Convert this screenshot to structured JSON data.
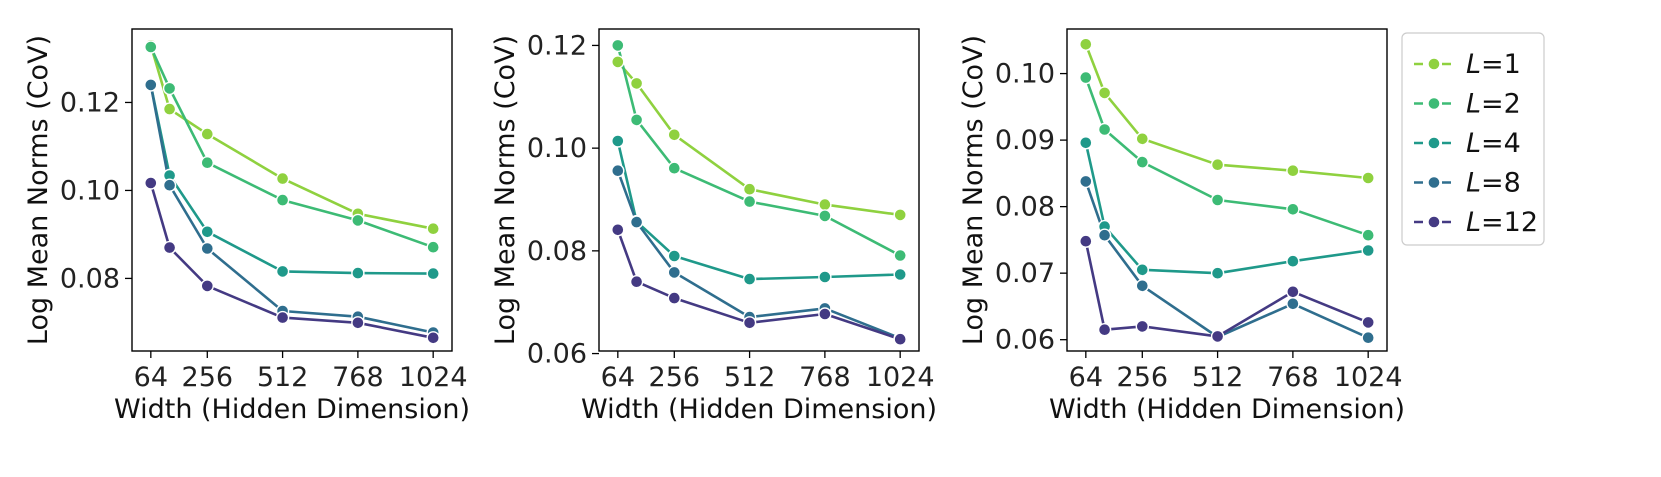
{
  "chart_data": [
    {
      "type": "line",
      "xlabel": "Width (Hidden Dimension)",
      "ylabel": "Log Mean Norms (CoV)",
      "xticks": [
        64,
        256,
        512,
        768,
        1024
      ],
      "yticks": [
        0.08,
        0.1,
        0.12
      ],
      "ytick_labels": [
        "0.08",
        "0.10",
        "0.12"
      ],
      "xlim": [
        0,
        1088
      ],
      "ylim": [
        0.0635,
        0.1367
      ],
      "x": [
        64,
        128,
        256,
        512,
        768,
        1024
      ],
      "series": [
        {
          "name": "L=1",
          "values": [
            0.133,
            0.1185,
            0.1128,
            0.1027,
            0.0947,
            0.0913
          ]
        },
        {
          "name": "L=2",
          "values": [
            0.1326,
            0.1232,
            0.1063,
            0.0978,
            0.0932,
            0.0871
          ]
        },
        {
          "name": "L=4",
          "values": [
            0.124,
            0.1034,
            0.0906,
            0.0816,
            0.0812,
            0.0811
          ]
        },
        {
          "name": "L=8",
          "values": [
            0.124,
            0.1012,
            0.0868,
            0.0726,
            0.0713,
            0.0677
          ]
        },
        {
          "name": "L=12",
          "values": [
            0.1017,
            0.087,
            0.0783,
            0.0711,
            0.0699,
            0.0665
          ]
        }
      ]
    },
    {
      "type": "line",
      "xlabel": "Width (Hidden Dimension)",
      "ylabel": "Log Mean Norms (CoV)",
      "xticks": [
        64,
        256,
        512,
        768,
        1024
      ],
      "yticks": [
        0.06,
        0.08,
        0.1,
        0.12
      ],
      "ytick_labels": [
        "0.06",
        "0.08",
        "0.10",
        "0.12"
      ],
      "xlim": [
        0,
        1088
      ],
      "ylim": [
        0.0605,
        0.1232
      ],
      "x": [
        64,
        128,
        256,
        512,
        768,
        1024
      ],
      "series": [
        {
          "name": "L=1",
          "values": [
            0.1168,
            0.1126,
            0.1026,
            0.092,
            0.089,
            0.087
          ]
        },
        {
          "name": "L=2",
          "values": [
            0.12,
            0.1055,
            0.0961,
            0.0896,
            0.0868,
            0.0791
          ]
        },
        {
          "name": "L=4",
          "values": [
            0.1014,
            0.0857,
            0.079,
            0.0745,
            0.0749,
            0.0754
          ]
        },
        {
          "name": "L=8",
          "values": [
            0.0956,
            0.0856,
            0.0758,
            0.0671,
            0.0688,
            0.063
          ]
        },
        {
          "name": "L=12",
          "values": [
            0.0841,
            0.074,
            0.0708,
            0.066,
            0.0677,
            0.0628
          ]
        }
      ]
    },
    {
      "type": "line",
      "xlabel": "Width (Hidden Dimension)",
      "ylabel": "Log Mean Norms (CoV)",
      "xticks": [
        64,
        256,
        512,
        768,
        1024
      ],
      "yticks": [
        0.06,
        0.07,
        0.08,
        0.09,
        0.1
      ],
      "ytick_labels": [
        "0.06",
        "0.07",
        "0.08",
        "0.09",
        "0.10"
      ],
      "xlim": [
        0,
        1088
      ],
      "ylim": [
        0.0583,
        0.1067
      ],
      "x": [
        64,
        128,
        256,
        512,
        768,
        1024
      ],
      "series": [
        {
          "name": "L=1",
          "values": [
            0.1044,
            0.0971,
            0.0902,
            0.0863,
            0.0854,
            0.0843
          ]
        },
        {
          "name": "L=2",
          "values": [
            0.0994,
            0.0916,
            0.0867,
            0.081,
            0.0796,
            0.0757
          ]
        },
        {
          "name": "L=4",
          "values": [
            0.0896,
            0.077,
            0.0705,
            0.07,
            0.0718,
            0.0734
          ]
        },
        {
          "name": "L=8",
          "values": [
            0.0838,
            0.0757,
            0.0681,
            0.0604,
            0.0654,
            0.0603
          ]
        },
        {
          "name": "L=12",
          "values": [
            0.0748,
            0.0615,
            0.062,
            0.0605,
            0.0672,
            0.0626
          ]
        }
      ]
    }
  ],
  "legend": {
    "placement": "right",
    "entries": [
      {
        "prefix": "L",
        "suffix": "=1",
        "color": "#8fd13f"
      },
      {
        "prefix": "L",
        "suffix": "=2",
        "color": "#3dbb75"
      },
      {
        "prefix": "L",
        "suffix": "=4",
        "color": "#1f998a"
      },
      {
        "prefix": "L",
        "suffix": "=8",
        "color": "#2f6e8e"
      },
      {
        "prefix": "L",
        "suffix": "=12",
        "color": "#443a83"
      }
    ]
  }
}
